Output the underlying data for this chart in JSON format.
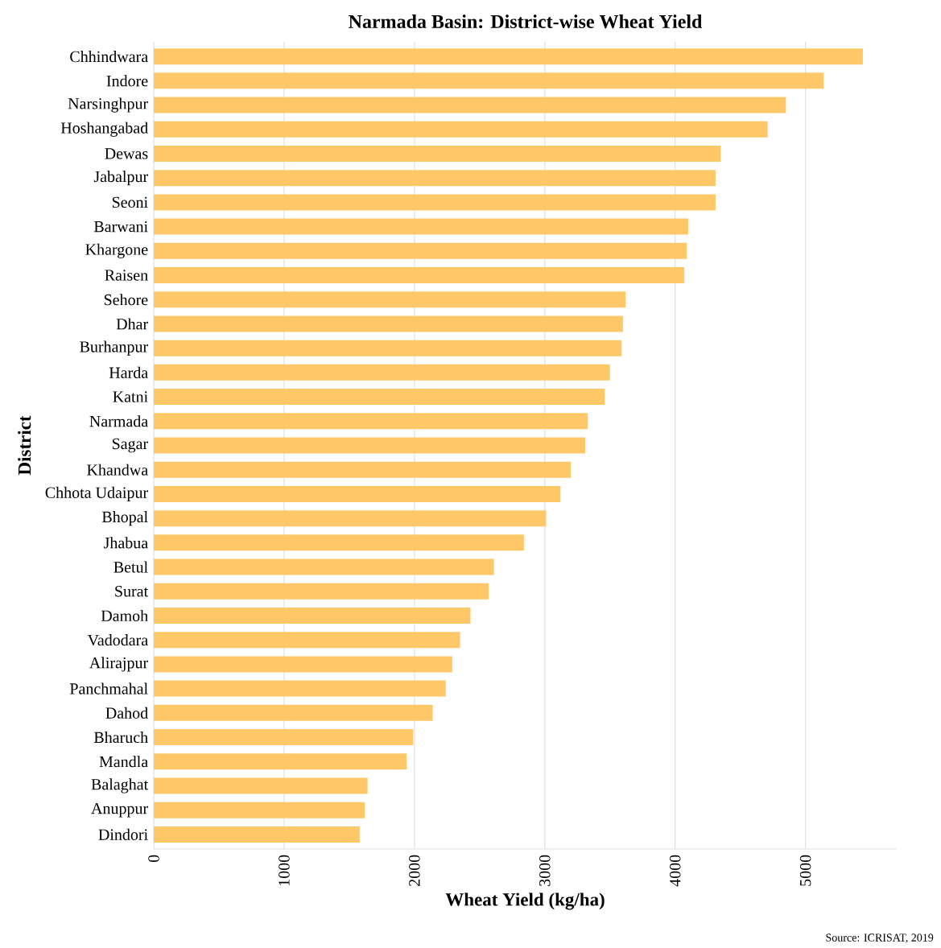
{
  "chart_data": {
    "type": "bar",
    "orientation": "horizontal",
    "title": "Narmada Basin: District-wise Wheat Yield",
    "xlabel": "Wheat Yield (kg/ha)",
    "ylabel": "District",
    "categories": [
      "Chhindwara",
      "Indore",
      "Narsinghpur",
      "Hoshangabad",
      "Dewas",
      "Jabalpur",
      "Seoni",
      "Barwani",
      "Khargone",
      "Raisen",
      "Sehore",
      "Dhar",
      "Burhanpur",
      "Harda",
      "Katni",
      "Narmada",
      "Sagar",
      "Khandwa",
      "Chhota Udaipur",
      "Bhopal",
      "Jhabua",
      "Betul",
      "Surat",
      "Damoh",
      "Vadodara",
      "Alirajpur",
      "Panchmahal",
      "Dahod",
      "Bharuch",
      "Mandla",
      "Balaghat",
      "Anuppur",
      "Dindori"
    ],
    "values": [
      5440,
      5140,
      4850,
      4710,
      4350,
      4310,
      4310,
      4100,
      4090,
      4070,
      3620,
      3600,
      3590,
      3500,
      3460,
      3330,
      3310,
      3200,
      3120,
      3010,
      2840,
      2610,
      2570,
      2430,
      2350,
      2290,
      2240,
      2140,
      1990,
      1940,
      1640,
      1620,
      1580
    ],
    "color": "#fec868",
    "xlim": [
      0,
      5700
    ],
    "xticks": [
      0,
      1000,
      2000,
      3000,
      4000,
      5000
    ],
    "grid": "x",
    "annotations": [
      "Source: ICRISAT, 2019"
    ]
  }
}
